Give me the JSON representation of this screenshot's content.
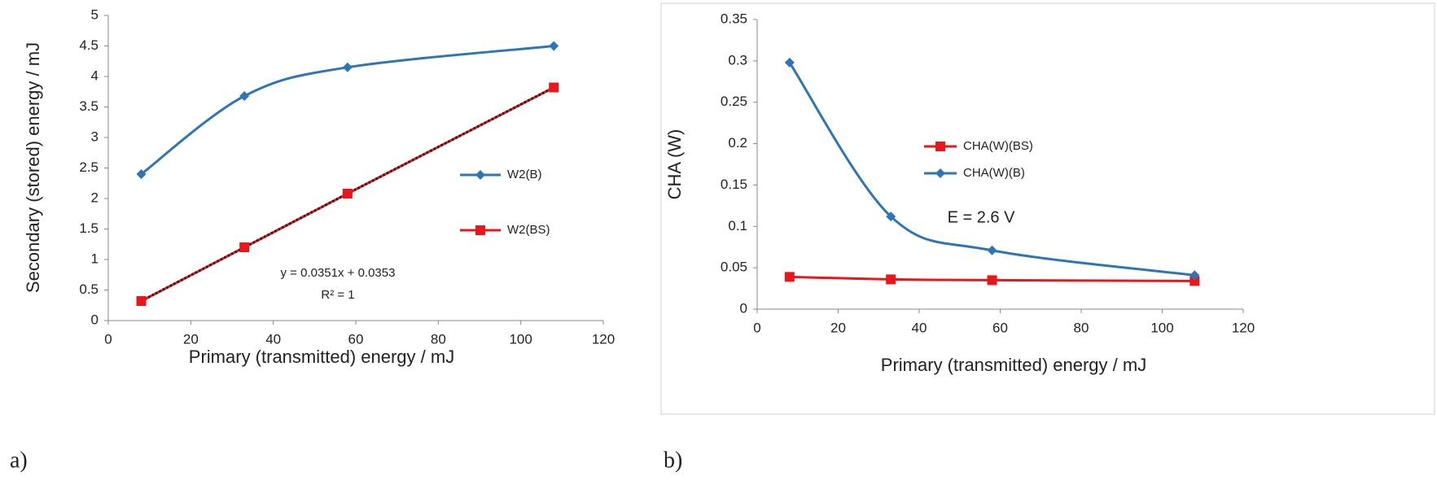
{
  "chart_data": [
    {
      "type": "line",
      "panel_label": "a)",
      "xlabel": "Primary (transmitted) energy / mJ",
      "ylabel": "Secondary (stored) energy / mJ",
      "x": [
        8,
        33,
        58,
        108
      ],
      "series": [
        {
          "name": "W2(B)",
          "color": "#2e75b6",
          "marker": "diamond",
          "smooth": true,
          "values": [
            2.4,
            3.68,
            4.15,
            4.5
          ]
        },
        {
          "name": "W2(BS)",
          "color": "#e8171b",
          "marker": "square",
          "smooth": false,
          "trendline": true,
          "values": [
            0.32,
            1.2,
            2.08,
            3.82
          ]
        }
      ],
      "xlim": [
        0,
        120
      ],
      "xticks": [
        0,
        20,
        40,
        60,
        80,
        100,
        120
      ],
      "ylim": [
        0,
        5
      ],
      "yticks": [
        0,
        0.5,
        1,
        1.5,
        2,
        2.5,
        3,
        3.5,
        4,
        4.5,
        5
      ],
      "annotations": [
        "y = 0.0351x + 0.0353",
        "R² = 1"
      ]
    },
    {
      "type": "line",
      "panel_label": "b)",
      "xlabel": "Primary (transmitted) energy / mJ",
      "ylabel": "CHA (W)",
      "x": [
        8,
        33,
        58,
        108
      ],
      "series": [
        {
          "name": "CHA(W)(BS)",
          "color": "#e8171b",
          "marker": "square",
          "smooth": true,
          "values": [
            0.039,
            0.036,
            0.035,
            0.034
          ]
        },
        {
          "name": "CHA(W)(B)",
          "color": "#2e75b6",
          "marker": "diamond",
          "smooth": true,
          "values": [
            0.298,
            0.112,
            0.071,
            0.041
          ]
        }
      ],
      "xlim": [
        0,
        120
      ],
      "xticks": [
        0,
        20,
        40,
        60,
        80,
        100,
        120
      ],
      "ylim": [
        0,
        0.35
      ],
      "yticks": [
        0,
        0.05,
        0.1,
        0.15,
        0.2,
        0.25,
        0.3,
        0.35
      ],
      "annotations": [
        "E = 2.6 V"
      ]
    }
  ]
}
